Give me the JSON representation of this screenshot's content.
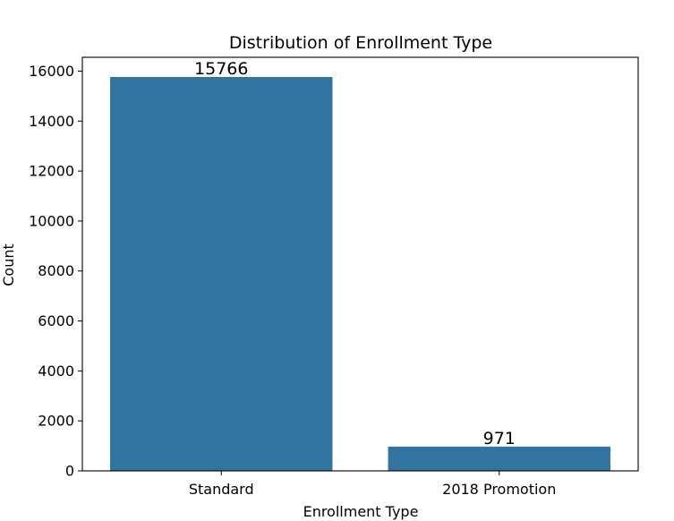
{
  "chart_data": {
    "type": "bar",
    "title": "Distribution of Enrollment Type",
    "xlabel": "Enrollment Type",
    "ylabel": "Count",
    "categories": [
      "Standard",
      "2018 Promotion"
    ],
    "values": [
      15766,
      971
    ],
    "data_labels": [
      "15766",
      "971"
    ],
    "ylim": [
      0,
      16554
    ],
    "yticks": [
      0,
      2000,
      4000,
      6000,
      8000,
      10000,
      12000,
      14000,
      16000
    ],
    "ytick_labels": [
      "0",
      "2000",
      "4000",
      "6000",
      "8000",
      "10000",
      "12000",
      "14000",
      "16000"
    ],
    "bar_color": "#3274a1",
    "grid": false,
    "legend": "none"
  }
}
